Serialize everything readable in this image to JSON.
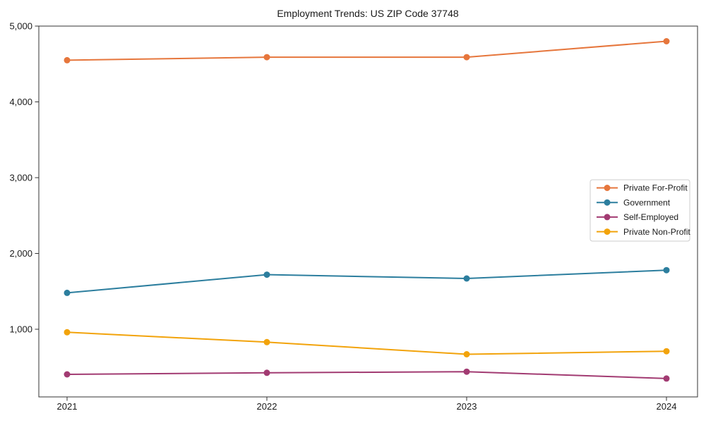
{
  "chart_data": {
    "type": "line",
    "title": "Employment Trends: US ZIP Code 37748",
    "xlabel": "",
    "ylabel": "",
    "x": [
      2021,
      2022,
      2023,
      2024
    ],
    "x_tick_labels": [
      "2021",
      "2022",
      "2023",
      "2024"
    ],
    "y_ticks": [
      1000,
      2000,
      3000,
      4000,
      5000
    ],
    "y_tick_labels": [
      "1,000",
      "2,000",
      "3,000",
      "4,000",
      "5,000"
    ],
    "ylim": [
      107,
      5000
    ],
    "grid": false,
    "legend_position": "center right",
    "series": [
      {
        "name": "Private For-Profit",
        "color": "#E6763C",
        "values": [
          4550,
          4590,
          4590,
          4800
        ]
      },
      {
        "name": "Government",
        "color": "#2C7E9E",
        "values": [
          1480,
          1720,
          1670,
          1780
        ]
      },
      {
        "name": "Self-Employed",
        "color": "#A23B72",
        "values": [
          405,
          425,
          440,
          350
        ]
      },
      {
        "name": "Private Non-Profit",
        "color": "#F2A30B",
        "values": [
          960,
          830,
          670,
          710
        ]
      }
    ],
    "axis_color": "#333333",
    "legend_border_color": "#cccccc",
    "legend_background": "#ffffff"
  }
}
